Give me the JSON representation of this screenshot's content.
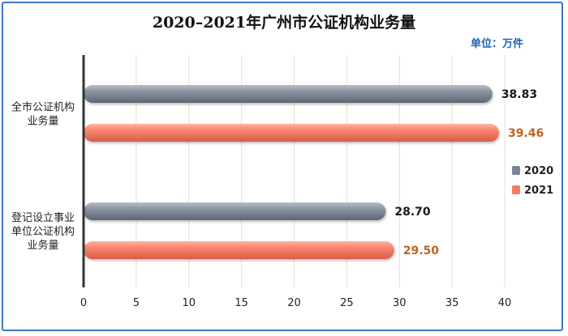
{
  "chart_data": {
    "type": "bar",
    "orientation": "horizontal",
    "title": "2020–2021年广州市公证机构业务量",
    "unit_label": "单位：万件",
    "categories": [
      "全市公证机构业务量",
      "登记设立事业单位公证机构业务量"
    ],
    "category_lines": [
      [
        "全市公证机构",
        "业务量"
      ],
      [
        "登记设立事业",
        "单位公证机构",
        "业务量"
      ]
    ],
    "series": [
      {
        "name": "2020",
        "values": [
          38.83,
          28.7
        ],
        "labels": [
          "38.83",
          "28.70"
        ],
        "color": "#7d8594",
        "label_color": "#1a1a1a"
      },
      {
        "name": "2021",
        "values": [
          39.46,
          29.5
        ],
        "labels": [
          "39.46",
          "29.50"
        ],
        "color": "#f47b63",
        "label_color": "#c0631e"
      }
    ],
    "xlim": [
      0,
      40
    ],
    "xticks": [
      "0",
      "5",
      "10",
      "15",
      "20",
      "25",
      "30",
      "35",
      "40"
    ],
    "grid": true,
    "legend": "right"
  }
}
